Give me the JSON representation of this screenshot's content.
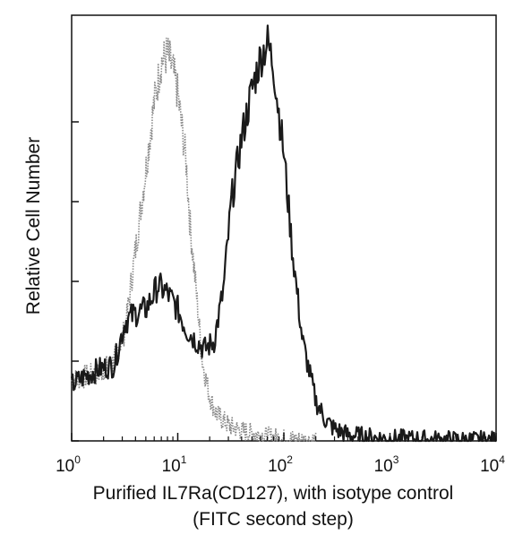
{
  "chart_data": {
    "type": "line",
    "title": "",
    "xlabel": "Purified IL7Ra(CD127), with isotype control",
    "xlabel_line2": "(FITC second step)",
    "ylabel": "Relative Cell Number",
    "x_scale": "log",
    "xlim": [
      1,
      10000
    ],
    "ylim": [
      0,
      1
    ],
    "grid": false,
    "legend": "none",
    "x_ticks": [
      {
        "base": "10",
        "exp": "0",
        "value": 1
      },
      {
        "base": "10",
        "exp": "1",
        "value": 10
      },
      {
        "base": "10",
        "exp": "2",
        "value": 100
      },
      {
        "base": "10",
        "exp": "3",
        "value": 1000
      },
      {
        "base": "10",
        "exp": "4",
        "value": 10000
      }
    ],
    "y_ticks": [
      0,
      0.2,
      0.4,
      0.6,
      0.8
    ],
    "series": [
      {
        "style": "dotted-gray",
        "color": "#8a8a8a",
        "x": [
          1,
          1.3,
          1.8,
          2.5,
          3.2,
          4.0,
          5.0,
          6.0,
          7.0,
          8.0,
          9.0,
          10,
          11,
          12,
          13,
          15,
          17,
          20,
          23,
          27,
          32,
          40,
          50,
          65,
          80,
          100,
          140,
          200
        ],
        "y": [
          0.15,
          0.16,
          0.17,
          0.2,
          0.28,
          0.48,
          0.68,
          0.85,
          0.95,
          0.97,
          0.93,
          0.87,
          0.78,
          0.7,
          0.55,
          0.37,
          0.2,
          0.11,
          0.07,
          0.05,
          0.035,
          0.025,
          0.02,
          0.012,
          0.008,
          0.005,
          0.002,
          0
        ]
      },
      {
        "style": "solid-black",
        "color": "#1a1a1a",
        "x": [
          1,
          1.3,
          1.8,
          2.5,
          3.2,
          4.0,
          5.0,
          6.5,
          8.0,
          10,
          12,
          15,
          18,
          22,
          27,
          32,
          40,
          50,
          60,
          70,
          80,
          90,
          100,
          120,
          150,
          200,
          250,
          300,
          400,
          500,
          700,
          1000,
          1500,
          2000,
          3000,
          5000,
          10000
        ],
        "y": [
          0.14,
          0.16,
          0.18,
          0.19,
          0.3,
          0.32,
          0.33,
          0.39,
          0.37,
          0.33,
          0.28,
          0.25,
          0.23,
          0.25,
          0.38,
          0.6,
          0.76,
          0.88,
          0.96,
          1.0,
          0.94,
          0.82,
          0.72,
          0.48,
          0.25,
          0.1,
          0.05,
          0.03,
          0.015,
          0.012,
          0.008,
          0.005,
          0.004,
          0.003,
          0.002,
          0.001,
          0
        ]
      }
    ]
  }
}
